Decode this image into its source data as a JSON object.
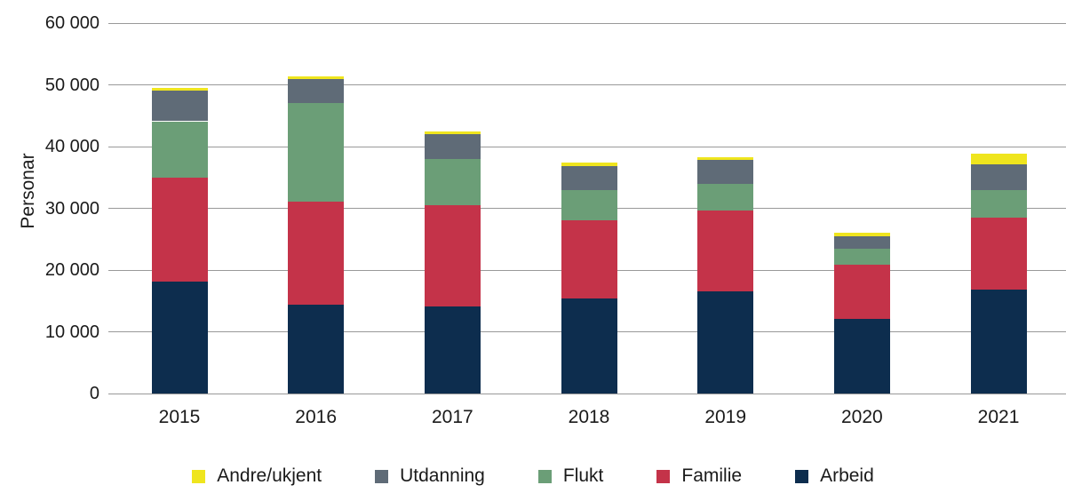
{
  "chart_data": {
    "type": "bar",
    "stacked": true,
    "title": "",
    "xlabel": "",
    "ylabel": "Personar",
    "ylim": [
      0,
      60000
    ],
    "ytick_step": 10000,
    "ytick_labels": [
      "0",
      "10 000",
      "20 000",
      "30 000",
      "40 000",
      "50 000",
      "60 000"
    ],
    "categories": [
      "2015",
      "2016",
      "2017",
      "2018",
      "2019",
      "2020",
      "2021"
    ],
    "series": [
      {
        "name": "Arbeid",
        "color": "#0d2d4e",
        "values": [
          18200,
          14400,
          14100,
          15400,
          16500,
          12100,
          16800
        ]
      },
      {
        "name": "Familie",
        "color": "#c43349",
        "values": [
          16700,
          16700,
          16400,
          12700,
          13200,
          8800,
          11700
        ]
      },
      {
        "name": "Flukt",
        "color": "#6b9e77",
        "values": [
          9200,
          15900,
          7500,
          4800,
          4300,
          2600,
          4500
        ]
      },
      {
        "name": "Utdanning",
        "color": "#5f6b77",
        "values": [
          4900,
          3900,
          4000,
          4000,
          3900,
          1900,
          4100
        ]
      },
      {
        "name": "Andre/ukjent",
        "color": "#efe51e",
        "values": [
          500,
          400,
          500,
          500,
          400,
          600,
          1700
        ]
      }
    ],
    "totals": [
      49500,
      51300,
      42500,
      37400,
      38300,
      26000,
      38800
    ],
    "legend_order": [
      "Andre/ukjent",
      "Utdanning",
      "Flukt",
      "Familie",
      "Arbeid"
    ],
    "legend_position": "bottom",
    "grid": true,
    "colors": {
      "gridline": "#999999",
      "text": "#1a1a1a",
      "background": "#ffffff"
    }
  }
}
